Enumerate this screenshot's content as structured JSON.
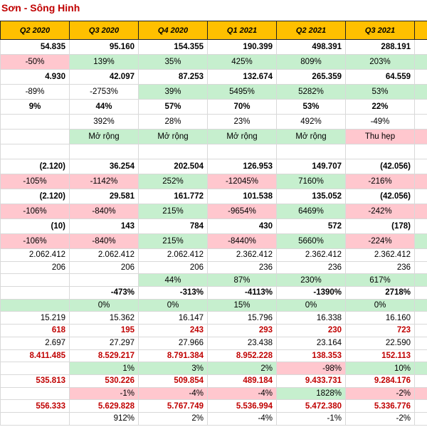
{
  "header": {
    "title": "Sơn - Sông Hinh"
  },
  "table": {
    "columns": [
      "Q2 2020",
      "Q3 2020",
      "Q4 2020",
      "Q1 2021",
      "Q2 2021",
      "Q3 2021"
    ],
    "rows": [
      [
        "54.835",
        "95.160",
        "154.355",
        "190.399",
        "498.391",
        "288.191"
      ],
      [
        "-50%",
        "139%",
        "35%",
        "425%",
        "809%",
        "203%"
      ],
      [
        "4.930",
        "42.097",
        "87.253",
        "132.674",
        "265.359",
        "64.559"
      ],
      [
        "-89%",
        "-2753%",
        "39%",
        "5495%",
        "5282%",
        "53%"
      ],
      [
        "9%",
        "44%",
        "57%",
        "70%",
        "53%",
        "22%"
      ],
      [
        null,
        "392%",
        "28%",
        "23%",
        "492%",
        "-49%"
      ],
      [
        null,
        "Mở rộng",
        "Mở rộng",
        "Mở rộng",
        "Mở rộng",
        "Thu hẹp"
      ],
      [
        null,
        null,
        null,
        null,
        null,
        null
      ],
      [
        "(2.120)",
        "36.254",
        "202.504",
        "126.953",
        "149.707",
        "(42.056)"
      ],
      [
        "-105%",
        "-1142%",
        "252%",
        "-12045%",
        "7160%",
        "-216%"
      ],
      [
        "(2.120)",
        "29.581",
        "161.772",
        "101.538",
        "135.052",
        "(42.056)"
      ],
      [
        "-106%",
        "-840%",
        "215%",
        "-9654%",
        "6469%",
        "-242%"
      ],
      [
        "(10)",
        "143",
        "784",
        "430",
        "572",
        "(178)"
      ],
      [
        "-106%",
        "-840%",
        "215%",
        "-8440%",
        "5660%",
        "-224%"
      ],
      [
        "2.062.412",
        "2.062.412",
        "2.062.412",
        "2.362.412",
        "2.362.412",
        "2.362.412"
      ],
      [
        "206",
        "206",
        "206",
        "236",
        "236",
        "236"
      ],
      [
        null,
        null,
        "44%",
        "87%",
        "230%",
        "617%"
      ],
      [
        null,
        "-473%",
        "-313%",
        "-4113%",
        "-1390%",
        "2718%"
      ],
      [
        null,
        "0%",
        "0%",
        "15%",
        "0%",
        "0%"
      ],
      [
        "15.219",
        "15.362",
        "16.147",
        "15.796",
        "16.338",
        "16.160"
      ],
      [
        "618",
        "195",
        "243",
        "293",
        "230",
        "723"
      ],
      [
        "2.697",
        "27.297",
        "27.966",
        "23.438",
        "23.164",
        "22.590"
      ],
      [
        "8.411.485",
        "8.529.217",
        "8.791.384",
        "8.952.228",
        "138.353",
        "152.113"
      ],
      [
        null,
        "1%",
        "3%",
        "2%",
        "-98%",
        "10%"
      ],
      [
        "535.813",
        "530.226",
        "509.854",
        "489.184",
        "9.433.731",
        "9.284.176"
      ],
      [
        null,
        "-1%",
        "-4%",
        "-4%",
        "1828%",
        "-2%"
      ],
      [
        "556.333",
        "5.629.828",
        "5.767.749",
        "5.536.994",
        "5.472.380",
        "5.336.776"
      ],
      [
        null,
        "912%",
        "2%",
        "-4%",
        "-1%",
        "-2%"
      ]
    ]
  }
}
